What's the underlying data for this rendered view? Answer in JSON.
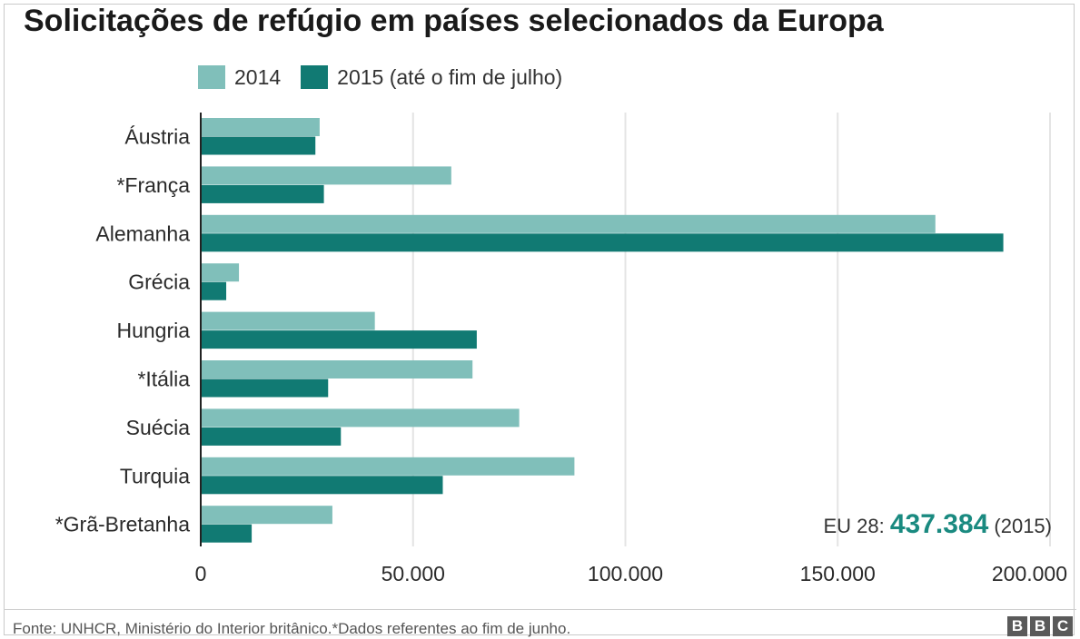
{
  "title": "Solicitações de refúgio em países selecionados da Europa",
  "legend": [
    {
      "label": "2014",
      "color": "#80bfba"
    },
    {
      "label": "2015 (até o fim de julho)",
      "color": "#117a73"
    }
  ],
  "annotation": {
    "prefix": "EU 28: ",
    "value": "437.384",
    "suffix": " (2015)",
    "value_color": "#1a8a80"
  },
  "footer": {
    "source": "Fonte: UNHCR, Ministério do Interior britânico.*Dados referentes ao fim de junho.",
    "logo": [
      "B",
      "B",
      "C"
    ]
  },
  "chart_data": {
    "type": "bar",
    "orientation": "horizontal",
    "title": "Solicitações de refúgio em países selecionados da Europa",
    "categories": [
      "Áustria",
      "*França",
      "Alemanha",
      "Grécia",
      "Hungria",
      "*Itália",
      "Suécia",
      "Turquia",
      "*Grã-Bretanha"
    ],
    "series": [
      {
        "name": "2014",
        "color": "#80bfba",
        "values": [
          28000,
          59000,
          173000,
          9000,
          41000,
          64000,
          75000,
          88000,
          31000
        ]
      },
      {
        "name": "2015 (até o fim de julho)",
        "color": "#117a73",
        "values": [
          27000,
          29000,
          189000,
          6000,
          65000,
          30000,
          33000,
          57000,
          12000
        ]
      }
    ],
    "xlim": [
      0,
      200000
    ],
    "x_ticks": [
      0,
      50000,
      100000,
      150000,
      200000
    ],
    "x_tick_labels": [
      "0",
      "50.000",
      "100.000",
      "150.000",
      "200.000"
    ],
    "grid": true,
    "xlabel": "",
    "ylabel": "",
    "legend_position": "top-left"
  }
}
